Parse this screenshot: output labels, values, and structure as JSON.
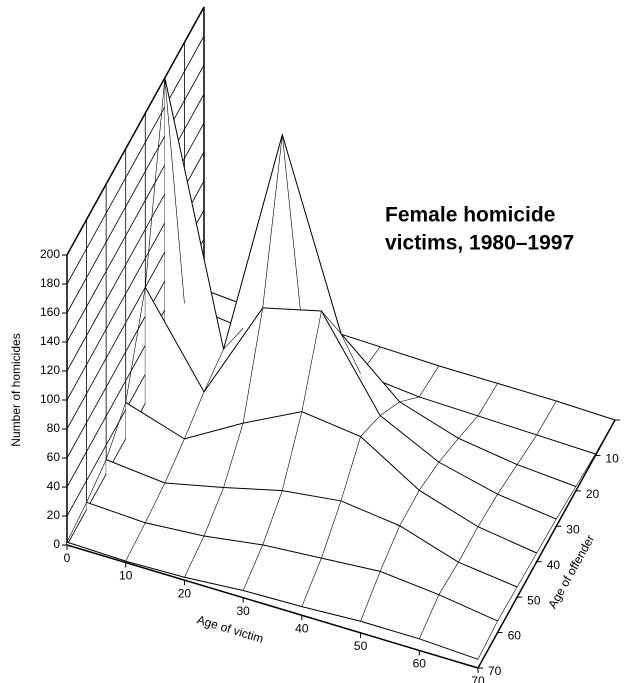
{
  "chart_data": {
    "type": "surface3d",
    "title": [
      "Female homicide",
      "victims, 1980–1997"
    ],
    "x_label": "Age of victim",
    "y_label": "Age of offender",
    "z_label": "Number of homicides",
    "x": [
      0,
      10,
      20,
      30,
      40,
      50,
      60,
      70
    ],
    "y": [
      0,
      10,
      20,
      30,
      40,
      50,
      60,
      70
    ],
    "z": [
      [
        5,
        2,
        3,
        2,
        1,
        1,
        1,
        0
      ],
      [
        20,
        15,
        30,
        8,
        4,
        3,
        2,
        1
      ],
      [
        200,
        25,
        185,
        60,
        25,
        12,
        6,
        3
      ],
      [
        80,
        20,
        90,
        100,
        40,
        20,
        10,
        5
      ],
      [
        25,
        12,
        35,
        55,
        50,
        25,
        12,
        6
      ],
      [
        10,
        6,
        15,
        25,
        30,
        25,
        12,
        7
      ],
      [
        5,
        3,
        6,
        12,
        15,
        18,
        14,
        8
      ],
      [
        2,
        1,
        2,
        5,
        6,
        8,
        8,
        6
      ]
    ],
    "xlim": [
      0,
      70
    ],
    "ylim": [
      0,
      70
    ],
    "zlim": [
      0,
      200
    ],
    "xticks": [
      0,
      10,
      20,
      30,
      40,
      50,
      60,
      70
    ],
    "yticks": [
      0,
      10,
      20,
      30,
      40,
      50,
      60,
      70
    ],
    "zticks": [
      0,
      20,
      40,
      60,
      80,
      100,
      120,
      140,
      160,
      180,
      200
    ],
    "color": "#000000"
  }
}
